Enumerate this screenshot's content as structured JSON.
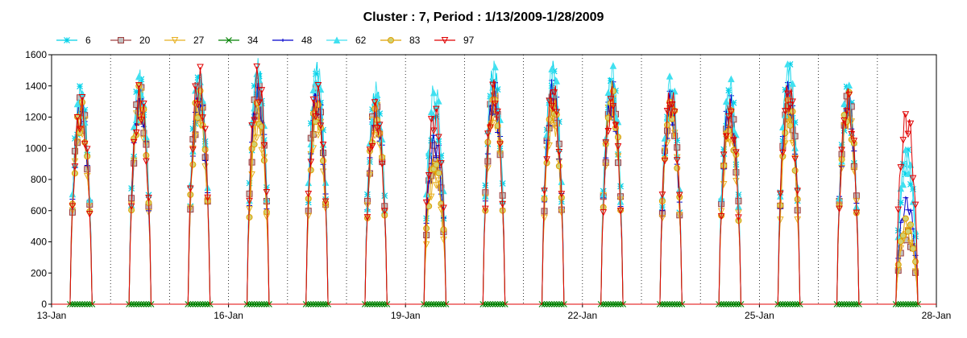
{
  "chart_data": {
    "type": "line",
    "title": "Cluster : 7, Period : 1/13/2009-1/28/2009",
    "xlabel": "",
    "ylabel": "",
    "x_ticks": [
      "13-Jan",
      "16-Jan",
      "19-Jan",
      "22-Jan",
      "25-Jan",
      "28-Jan"
    ],
    "x_range_days": [
      13,
      28
    ],
    "ylim": [
      0,
      1600
    ],
    "y_ticks": [
      0,
      200,
      400,
      600,
      800,
      1000,
      1200,
      1400,
      1600
    ],
    "grid": "vertical-dotted-midnight",
    "legend_position": "top-left",
    "daylight_hours": [
      7.5,
      16.5
    ],
    "series": [
      {
        "name": "6",
        "color": "#00d0e8",
        "marker": "asterisk",
        "values": [
          1420,
          1500,
          1500,
          1560,
          1560,
          1420,
          1300,
          1560,
          1570,
          1520,
          1400,
          1420,
          1560,
          1420,
          1000
        ]
      },
      {
        "name": "20",
        "color": "#a04040",
        "marker": "square",
        "values": [
          1340,
          1410,
          1420,
          1440,
          1420,
          1330,
          1060,
          1440,
          1420,
          1400,
          1360,
          1330,
          1440,
          1400,
          480
        ]
      },
      {
        "name": "27",
        "color": "#e8b020",
        "marker": "triangle-down",
        "values": [
          1300,
          1380,
          1380,
          1280,
          1300,
          1300,
          900,
          1380,
          1320,
          1400,
          1320,
          1200,
          1280,
          1330,
          500
        ]
      },
      {
        "name": "34",
        "color": "#008000",
        "marker": "x",
        "values": [
          0,
          0,
          0,
          0,
          0,
          0,
          0,
          0,
          0,
          0,
          0,
          0,
          0,
          0,
          0
        ]
      },
      {
        "name": "48",
        "color": "#0000cc",
        "marker": "dash",
        "values": [
          1360,
          1420,
          1440,
          1460,
          1420,
          1360,
          1120,
          1440,
          1460,
          1440,
          1380,
          1360,
          1440,
          1400,
          700
        ]
      },
      {
        "name": "62",
        "color": "#40e0f0",
        "marker": "triangle-up",
        "values": [
          1420,
          1520,
          1540,
          1580,
          1580,
          1430,
          1460,
          1580,
          1580,
          1560,
          1500,
          1460,
          1560,
          1420,
          1000
        ]
      },
      {
        "name": "83",
        "color": "#e0a000",
        "marker": "circle",
        "values": [
          1320,
          1420,
          1420,
          1330,
          1360,
          1320,
          980,
          1420,
          1380,
          1440,
          1380,
          1280,
          1360,
          1380,
          560
        ]
      },
      {
        "name": "97",
        "color": "#e00000",
        "marker": "triangle-down",
        "values": [
          1340,
          1420,
          1540,
          1540,
          1440,
          1320,
          1310,
          1460,
          1460,
          1400,
          1420,
          1320,
          1460,
          1400,
          1280
        ]
      }
    ]
  }
}
